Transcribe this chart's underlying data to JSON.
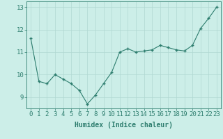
{
  "x": [
    0,
    1,
    2,
    3,
    4,
    5,
    6,
    7,
    8,
    9,
    10,
    11,
    12,
    13,
    14,
    15,
    16,
    17,
    18,
    19,
    20,
    21,
    22,
    23
  ],
  "y": [
    11.6,
    9.7,
    9.6,
    10.0,
    9.8,
    9.6,
    9.3,
    8.7,
    9.1,
    9.6,
    10.1,
    11.0,
    11.15,
    11.0,
    11.05,
    11.1,
    11.3,
    11.2,
    11.1,
    11.05,
    11.3,
    12.05,
    12.5,
    13.0
  ],
  "xlabel": "Humidex (Indice chaleur)",
  "ylim": [
    8.5,
    13.25
  ],
  "xlim": [
    -0.5,
    23.5
  ],
  "yticks": [
    9,
    10,
    11,
    12,
    13
  ],
  "xticks": [
    0,
    1,
    2,
    3,
    4,
    5,
    6,
    7,
    8,
    9,
    10,
    11,
    12,
    13,
    14,
    15,
    16,
    17,
    18,
    19,
    20,
    21,
    22,
    23
  ],
  "line_color": "#2d7d6e",
  "marker_color": "#2d7d6e",
  "bg_color": "#cceee8",
  "grid_color": "#b0d8d2",
  "axis_color": "#2d7d6e",
  "tick_color": "#2d7d6e",
  "xlabel_color": "#2d7d6e",
  "xlabel_fontsize": 7,
  "tick_fontsize": 6.5
}
